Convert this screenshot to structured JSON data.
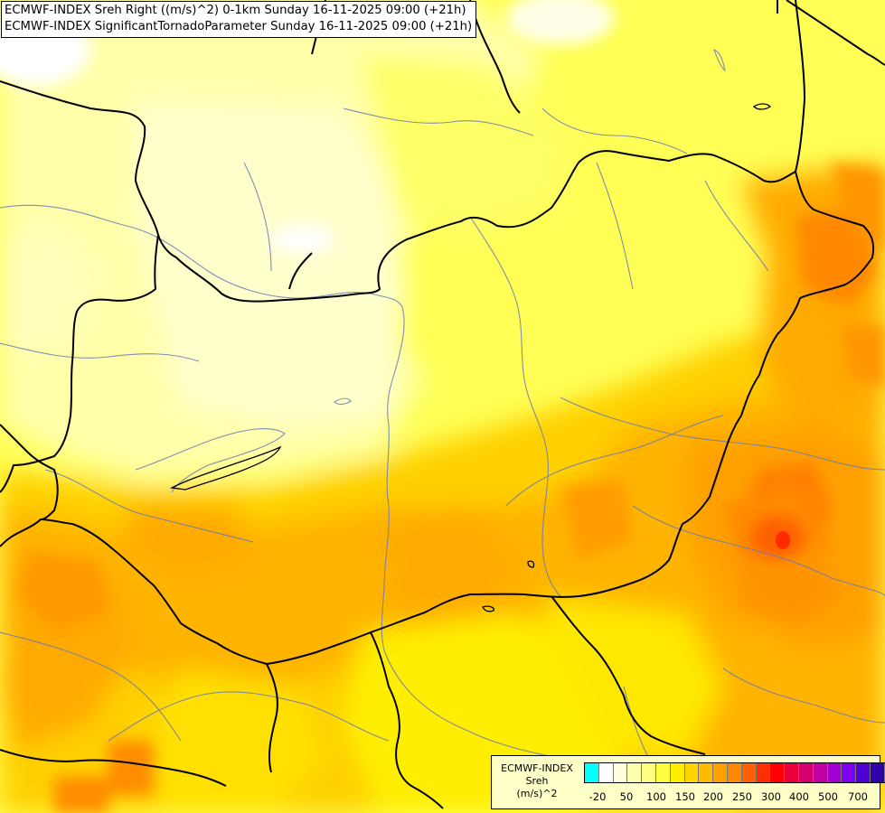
{
  "map": {
    "title_lines": [
      "ECMWF-INDEX Sreh Right ((m/s)^2) 0-1km Sunday 16-11-2025 09:00 (+21h)",
      "ECMWF-INDEX SignificantTornadoParameter Sunday 16-11-2025 09:00 (+21h)"
    ]
  },
  "legend": {
    "title": "ECMWF-INDEX",
    "variable": "Sreh",
    "unit": "(m/s)^2",
    "colors": [
      "#00ffff",
      "#ffffff",
      "#ffffe0",
      "#ffffb0",
      "#ffff80",
      "#ffff40",
      "#ffee00",
      "#ffd400",
      "#ffbb00",
      "#ffa000",
      "#ff8800",
      "#ff6000",
      "#ff3000",
      "#ff0000",
      "#e8003c",
      "#d4006e",
      "#c000a0",
      "#a000d0",
      "#8000f0",
      "#5000d0",
      "#3000a8",
      "#100080"
    ],
    "tick_labels": [
      "-20",
      "50",
      "100",
      "150",
      "200",
      "250",
      "300",
      "400",
      "500",
      "700"
    ]
  }
}
